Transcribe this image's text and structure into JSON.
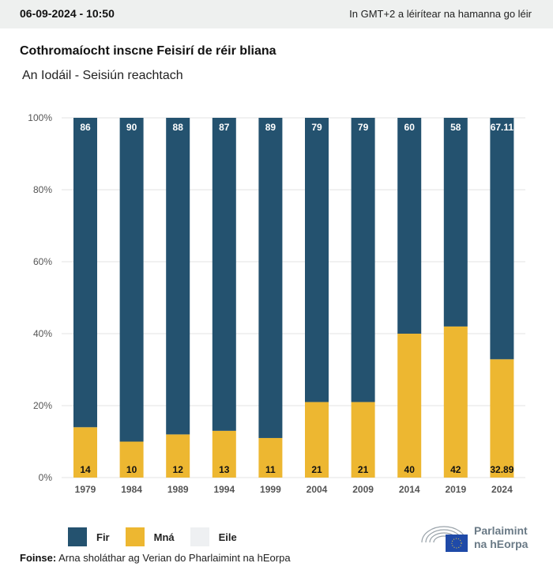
{
  "header": {
    "datetime": "06-09-2024 - 10:50",
    "timezone_note": "In GMT+2 a léirítear na hamanna go léir"
  },
  "chart_data": {
    "type": "bar",
    "stacked": true,
    "title": "Cothromaíocht inscne Feisirí de réir bliana",
    "subtitle": "An Iodáil - Seisiún reachtach",
    "categories": [
      "1979",
      "1984",
      "1989",
      "1994",
      "1999",
      "2004",
      "2009",
      "2014",
      "2019",
      "2024"
    ],
    "series": [
      {
        "name": "Mná",
        "color": "#edb731",
        "values": [
          14,
          10,
          12,
          13,
          11,
          21,
          21,
          40,
          42,
          32.89
        ]
      },
      {
        "name": "Fir",
        "color": "#24526f",
        "values": [
          86,
          90,
          88,
          87,
          89,
          79,
          79,
          60,
          58,
          67.11
        ]
      }
    ],
    "yticks": [
      "0%",
      "20%",
      "40%",
      "60%",
      "80%",
      "100%"
    ],
    "ylim": [
      0,
      100
    ],
    "grid": true,
    "legend": [
      {
        "label": "Fir",
        "color": "#24526f"
      },
      {
        "label": "Mná",
        "color": "#edb731"
      },
      {
        "label": "Eile",
        "color": "#eef0f2"
      }
    ],
    "legend_position": "bottom-left"
  },
  "footer": {
    "source_label": "Foinse:",
    "source_text": "Arna sholáthar ag Verian do Pharlaimint na hEorpa",
    "logo_line1": "Parlaimint",
    "logo_line2": "na hEorpa"
  }
}
